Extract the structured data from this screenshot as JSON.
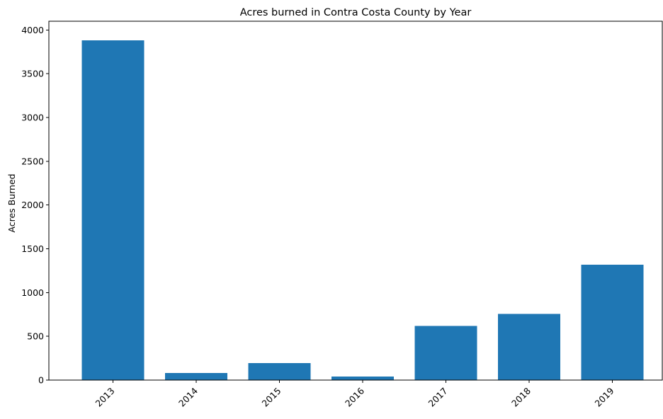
{
  "chart_data": {
    "type": "bar",
    "title": "Acres burned in Contra Costa County by Year",
    "xlabel": "",
    "ylabel": "Acres Burned",
    "categories": [
      "2013",
      "2014",
      "2015",
      "2016",
      "2017",
      "2018",
      "2019"
    ],
    "values": [
      3880,
      80,
      195,
      40,
      620,
      755,
      1320
    ],
    "ylim": [
      0,
      4100
    ],
    "yticks": [
      0,
      500,
      1000,
      1500,
      2000,
      2500,
      3000,
      3500,
      4000
    ],
    "bar_color": "#1f77b4",
    "grid": false,
    "legend": "none"
  }
}
